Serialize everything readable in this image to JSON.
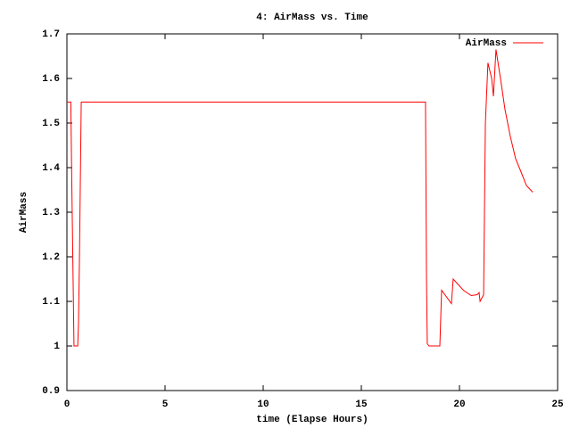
{
  "chart_data": {
    "type": "line",
    "title": "4: AirMass vs. Time",
    "x_label": "time (Elapse Hours)",
    "y_label": "AirMass",
    "x": [
      0,
      0.2,
      0.23,
      0.36,
      0.55,
      0.59,
      0.64,
      0.7,
      0.73,
      18.27,
      18.32,
      18.36,
      18.45,
      19.0,
      19.09,
      19.59,
      19.68,
      20.2,
      20.6,
      20.9,
      21.0,
      21.05,
      21.23,
      21.32,
      21.45,
      21.64,
      21.73,
      21.86,
      22.09,
      22.32,
      22.59,
      22.86,
      23.14,
      23.41,
      23.73
    ],
    "series": [
      {
        "name": "AirMass",
        "color": "#ff0000",
        "values": [
          1.547,
          1.547,
          1.43,
          1.0,
          1.0,
          1.05,
          1.2,
          1.43,
          1.547,
          1.547,
          1.15,
          1.005,
          1.0,
          1.0,
          1.125,
          1.095,
          1.15,
          1.125,
          1.113,
          1.115,
          1.12,
          1.1,
          1.115,
          1.5,
          1.635,
          1.6,
          1.56,
          1.665,
          1.6,
          1.53,
          1.47,
          1.42,
          1.39,
          1.36,
          1.345
        ]
      }
    ],
    "xlim": [
      0,
      25
    ],
    "xticks": [
      0,
      5,
      10,
      15,
      20,
      25
    ],
    "ylim": [
      0.9,
      1.7
    ],
    "yticks": [
      0.9,
      1,
      1.1,
      1.2,
      1.3,
      1.4,
      1.5,
      1.6,
      1.7
    ],
    "legend": "top-right"
  }
}
